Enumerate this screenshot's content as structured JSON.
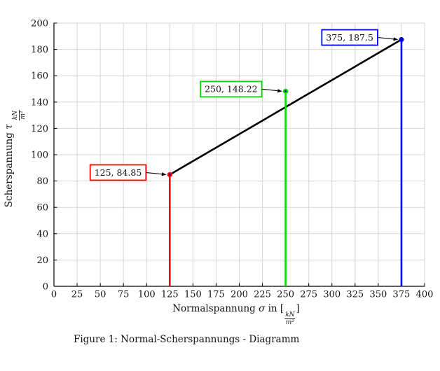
{
  "figure": {
    "caption": "Figure 1: Normal-Scherspannungs - Diagramm"
  },
  "chart_data": {
    "type": "line",
    "title": "",
    "xlabel": {
      "prefix": "Normalspannung ",
      "symbol": "σ",
      "mid": " in [",
      "frac_num": "kN",
      "frac_den": "m²",
      "suffix": "]"
    },
    "ylabel": {
      "prefix": "Scherspannung ",
      "symbol": "τ",
      "frac_num": "kN",
      "frac_den": "m²"
    },
    "xlim": [
      0,
      400
    ],
    "ylim": [
      0,
      200
    ],
    "xticks": [
      0,
      25,
      50,
      75,
      100,
      125,
      150,
      175,
      200,
      225,
      250,
      275,
      300,
      325,
      350,
      375,
      400
    ],
    "yticks": [
      0,
      20,
      40,
      60,
      80,
      100,
      120,
      140,
      160,
      180,
      200
    ],
    "grid": true,
    "legend": "none",
    "colors": {
      "grid": "#d6d6d6",
      "axis": "#000000",
      "text": "#111111",
      "envelope": "#000000",
      "marker_center": "#0000b4",
      "annotation_fill": "#ffffff"
    },
    "series": [
      {
        "name": "failure-envelope-line",
        "type": "line",
        "color": "#000000",
        "points": [
          [
            125,
            84.85
          ],
          [
            375,
            187.5
          ]
        ]
      },
      {
        "name": "stem-sigma-125",
        "type": "stem",
        "color": "#ff0000",
        "x": 125,
        "y": 84.85,
        "label": "125, 84.85"
      },
      {
        "name": "stem-sigma-250",
        "type": "stem",
        "color": "#00e000",
        "x": 250,
        "y": 148.22,
        "label": "250, 148.22"
      },
      {
        "name": "stem-sigma-375",
        "type": "stem",
        "color": "#0000ff",
        "x": 375,
        "y": 187.5,
        "label": "375, 187.5"
      }
    ]
  }
}
